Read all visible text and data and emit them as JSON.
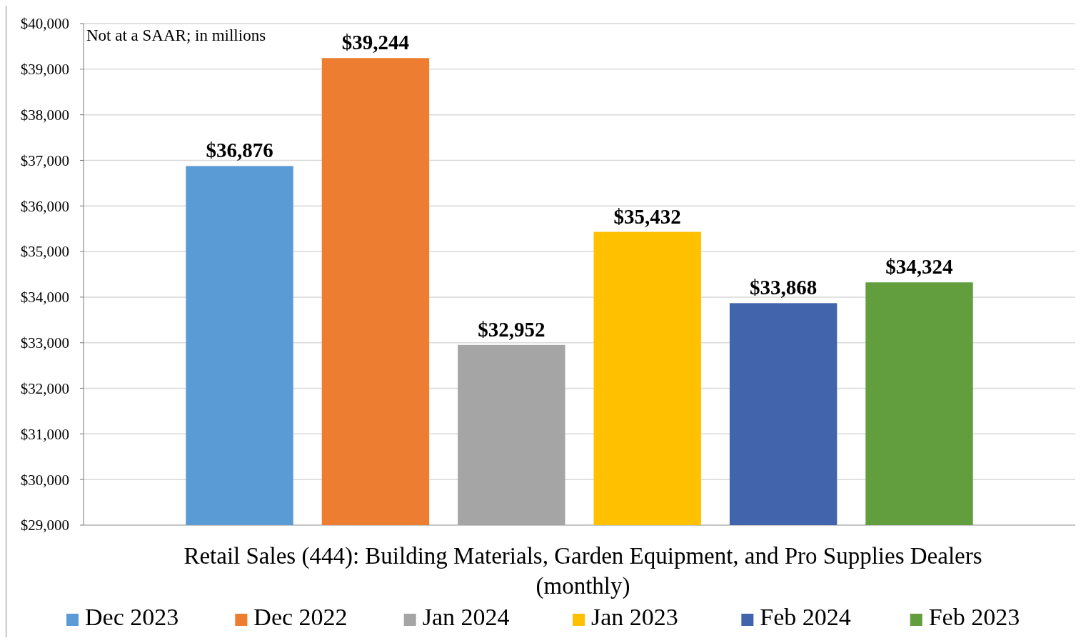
{
  "chart_data": {
    "type": "bar",
    "xlabel": "Retail Sales (444): Building Materials, Garden Equipment, and Pro Supplies Dealers (monthly)",
    "annotations": [
      "Not at a SAAR; in millions"
    ],
    "categories": [
      null
    ],
    "series": [
      {
        "name": "Dec 2023",
        "color": "#5b9bd5",
        "values": [
          36876
        ],
        "value_labels": [
          "$36,876"
        ]
      },
      {
        "name": "Dec 2022",
        "color": "#ed7d31",
        "values": [
          39244
        ],
        "value_labels": [
          "$39,244"
        ]
      },
      {
        "name": "Jan 2024",
        "color": "#a5a5a5",
        "values": [
          32952
        ],
        "value_labels": [
          "$32,952"
        ]
      },
      {
        "name": "Jan 2023",
        "color": "#ffc000",
        "values": [
          35432
        ],
        "value_labels": [
          "$35,432"
        ]
      },
      {
        "name": "Feb 2024",
        "color": "#4264ad",
        "values": [
          33868
        ],
        "value_labels": [
          "$33,868"
        ]
      },
      {
        "name": "Feb 2023",
        "color": "#629d3e",
        "values": [
          34324
        ],
        "value_labels": [
          "$34,324"
        ]
      }
    ],
    "ylim": [
      29000,
      40000
    ],
    "yticks": [
      {
        "value": 29000,
        "label": "$29,000"
      },
      {
        "value": 30000,
        "label": "$30,000"
      },
      {
        "value": 31000,
        "label": "$31,000"
      },
      {
        "value": 32000,
        "label": "$32,000"
      },
      {
        "value": 33000,
        "label": "$33,000"
      },
      {
        "value": 34000,
        "label": "$34,000"
      },
      {
        "value": 35000,
        "label": "$35,000"
      },
      {
        "value": 36000,
        "label": "$36,000"
      },
      {
        "value": 37000,
        "label": "$37,000"
      },
      {
        "value": 38000,
        "label": "$38,000"
      },
      {
        "value": 39000,
        "label": "$39,000"
      },
      {
        "value": 40000,
        "label": "$40,000"
      }
    ],
    "grid": "y",
    "legend": "bottom"
  }
}
